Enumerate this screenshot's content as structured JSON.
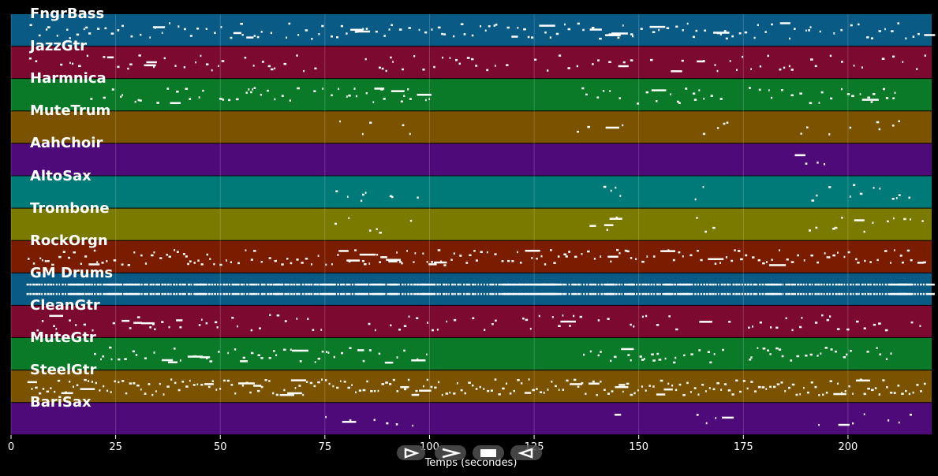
{
  "tracks": [
    {
      "name": "FngrBass",
      "color": "#0a5a86",
      "density": 0.6,
      "pattern": "dense",
      "seed": 1
    },
    {
      "name": "JazzGtr",
      "color": "#7c0a30",
      "density": 0.35,
      "pattern": "sparse-melody",
      "seed": 2
    },
    {
      "name": "Harmnica",
      "color": "#0a7a28",
      "density": 0.5,
      "pattern": "phrases",
      "seed": 3
    },
    {
      "name": "MuteTrum",
      "color": "#7a5200",
      "density": 0.1,
      "pattern": "rare",
      "seed": 4
    },
    {
      "name": "AahChoir",
      "color": "#4f0a7a",
      "density": 0.1,
      "pattern": "end",
      "seed": 5
    },
    {
      "name": "AltoSax",
      "color": "#007a78",
      "density": 0.2,
      "pattern": "rare",
      "seed": 6
    },
    {
      "name": "Trombone",
      "color": "#7a7a00",
      "density": 0.2,
      "pattern": "rare",
      "seed": 7
    },
    {
      "name": "RockOrgn",
      "color": "#7a1c00",
      "density": 0.8,
      "pattern": "dense",
      "seed": 8
    },
    {
      "name": "GM Drums",
      "color": "#0a5a86",
      "density": 0.9,
      "pattern": "drums",
      "seed": 9
    },
    {
      "name": "CleanGtr",
      "color": "#7c0a30",
      "density": 0.4,
      "pattern": "sparse-melody",
      "seed": 10
    },
    {
      "name": "MuteGtr",
      "color": "#0a7a28",
      "density": 0.6,
      "pattern": "phrases",
      "seed": 11
    },
    {
      "name": "SteelGtr",
      "color": "#7a5200",
      "density": 0.9,
      "pattern": "steady",
      "seed": 12
    },
    {
      "name": "BariSax",
      "color": "#4f0a7a",
      "density": 0.15,
      "pattern": "rare",
      "seed": 13
    }
  ],
  "axis": {
    "ticks": [
      "0",
      "25",
      "50",
      "75",
      "100",
      "125",
      "150",
      "175",
      "200"
    ],
    "tick_values": [
      0,
      25,
      50,
      75,
      100,
      125,
      150,
      175,
      200
    ],
    "xlim": [
      0,
      220
    ],
    "xlabel": "Temps (secondes)"
  },
  "controls": [
    {
      "name": "play-button",
      "icon": "play-icon"
    },
    {
      "name": "forward-button",
      "icon": "fast-forward-icon"
    },
    {
      "name": "stop-button",
      "icon": "stop-icon"
    },
    {
      "name": "rewind-button",
      "icon": "rewind-icon"
    }
  ]
}
